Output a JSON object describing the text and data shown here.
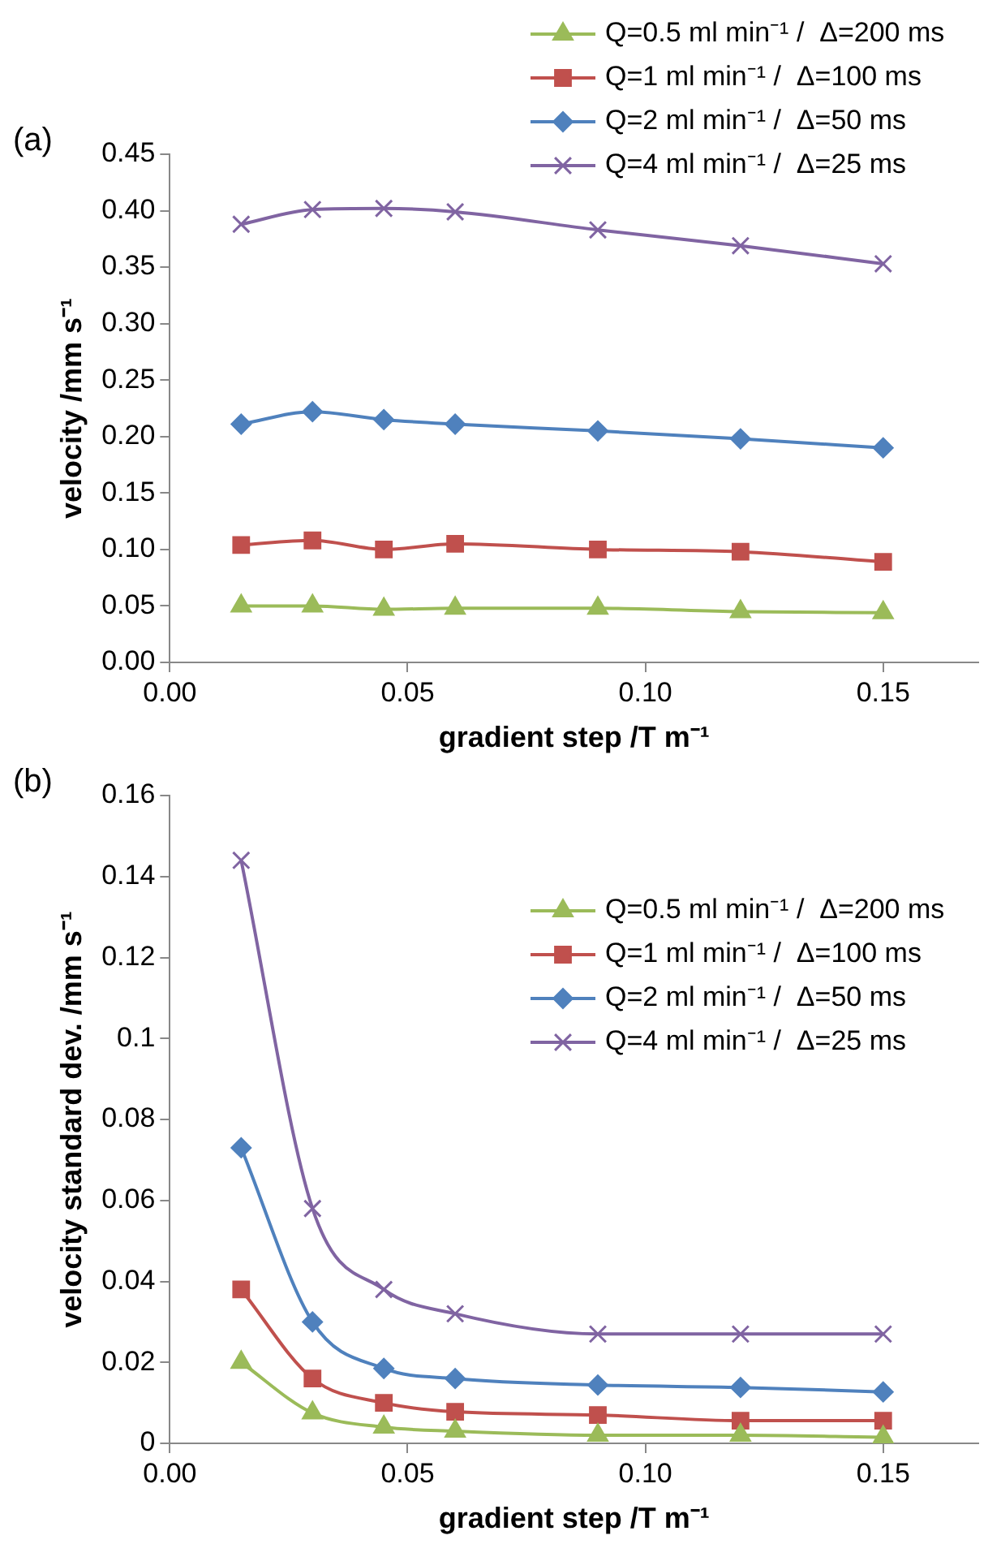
{
  "chart_data": [
    {
      "type": "line",
      "annotations": [
        "(a)"
      ],
      "xlabel": "gradient step /T m⁻¹",
      "ylabel": "velocity /mm s⁻¹",
      "x": [
        0.015,
        0.03,
        0.045,
        0.06,
        0.09,
        0.12,
        0.15
      ],
      "xlim": [
        0,
        0.17
      ],
      "xticks": [
        {
          "value": 0,
          "label": "0.00"
        },
        {
          "value": 0.05,
          "label": "0.05"
        },
        {
          "value": 0.1,
          "label": "0.10"
        },
        {
          "value": 0.15,
          "label": "0.15"
        }
      ],
      "ylim": [
        0,
        0.45
      ],
      "yticks": [
        {
          "value": 0,
          "label": "0.00"
        },
        {
          "value": 0.05,
          "label": "0.05"
        },
        {
          "value": 0.1,
          "label": "0.10"
        },
        {
          "value": 0.15,
          "label": "0.15"
        },
        {
          "value": 0.2,
          "label": "0.20"
        },
        {
          "value": 0.25,
          "label": "0.25"
        },
        {
          "value": 0.3,
          "label": "0.30"
        },
        {
          "value": 0.35,
          "label": "0.35"
        },
        {
          "value": 0.4,
          "label": "0.40"
        },
        {
          "value": 0.45,
          "label": "0.45"
        }
      ],
      "grid": false,
      "legend": "top right",
      "series": [
        {
          "name": "Q=0.5 ml min⁻¹ /  Δ=200 ms",
          "color": "#9bbb59",
          "marker": "triangle",
          "values": [
            0.05,
            0.05,
            0.047,
            0.048,
            0.048,
            0.045,
            0.044
          ]
        },
        {
          "name": "Q=1 ml min⁻¹ /  Δ=100 ms",
          "color": "#c0504d",
          "marker": "square",
          "values": [
            0.104,
            0.108,
            0.1,
            0.105,
            0.1,
            0.098,
            0.089
          ]
        },
        {
          "name": "Q=2 ml min⁻¹ /  Δ=50 ms",
          "color": "#4f81bd",
          "marker": "diamond",
          "values": [
            0.211,
            0.222,
            0.215,
            0.211,
            0.205,
            0.198,
            0.19
          ]
        },
        {
          "name": "Q=4 ml min⁻¹ /  Δ=25 ms",
          "color": "#8064a2",
          "marker": "cross",
          "values": [
            0.388,
            0.401,
            0.402,
            0.399,
            0.383,
            0.369,
            0.353
          ]
        }
      ]
    },
    {
      "type": "line",
      "annotations": [
        "(b)"
      ],
      "xlabel": "gradient step /T m⁻¹",
      "ylabel": "velocity standard dev. /mm s⁻¹",
      "x": [
        0.015,
        0.03,
        0.045,
        0.06,
        0.09,
        0.12,
        0.15
      ],
      "xlim": [
        0,
        0.17
      ],
      "xticks": [
        {
          "value": 0,
          "label": "0.00"
        },
        {
          "value": 0.05,
          "label": "0.05"
        },
        {
          "value": 0.1,
          "label": "0.10"
        },
        {
          "value": 0.15,
          "label": "0.15"
        }
      ],
      "ylim": [
        0,
        0.16
      ],
      "yticks": [
        0,
        0.02,
        0.04,
        0.06,
        0.08,
        0.1,
        0.12,
        0.14,
        0.16
      ],
      "grid": false,
      "legend": "right",
      "series": [
        {
          "name": "Q=0.5 ml min⁻¹ /  Δ=200 ms",
          "color": "#9bbb59",
          "marker": "triangle",
          "values": [
            0.02,
            0.0075,
            0.004,
            0.003,
            0.002,
            0.002,
            0.0015
          ]
        },
        {
          "name": "Q=1 ml min⁻¹ /  Δ=100 ms",
          "color": "#c0504d",
          "marker": "square",
          "values": [
            0.038,
            0.016,
            0.01,
            0.0078,
            0.007,
            0.0056,
            0.0056
          ]
        },
        {
          "name": "Q=2 ml min⁻¹ /  Δ=50 ms",
          "color": "#4f81bd",
          "marker": "diamond",
          "values": [
            0.073,
            0.03,
            0.0185,
            0.016,
            0.0144,
            0.0138,
            0.0127
          ]
        },
        {
          "name": "Q=4 ml min⁻¹ /  Δ=25 ms",
          "color": "#8064a2",
          "marker": "cross",
          "values": [
            0.144,
            0.058,
            0.038,
            0.032,
            0.027,
            0.027,
            0.027
          ]
        }
      ]
    }
  ]
}
